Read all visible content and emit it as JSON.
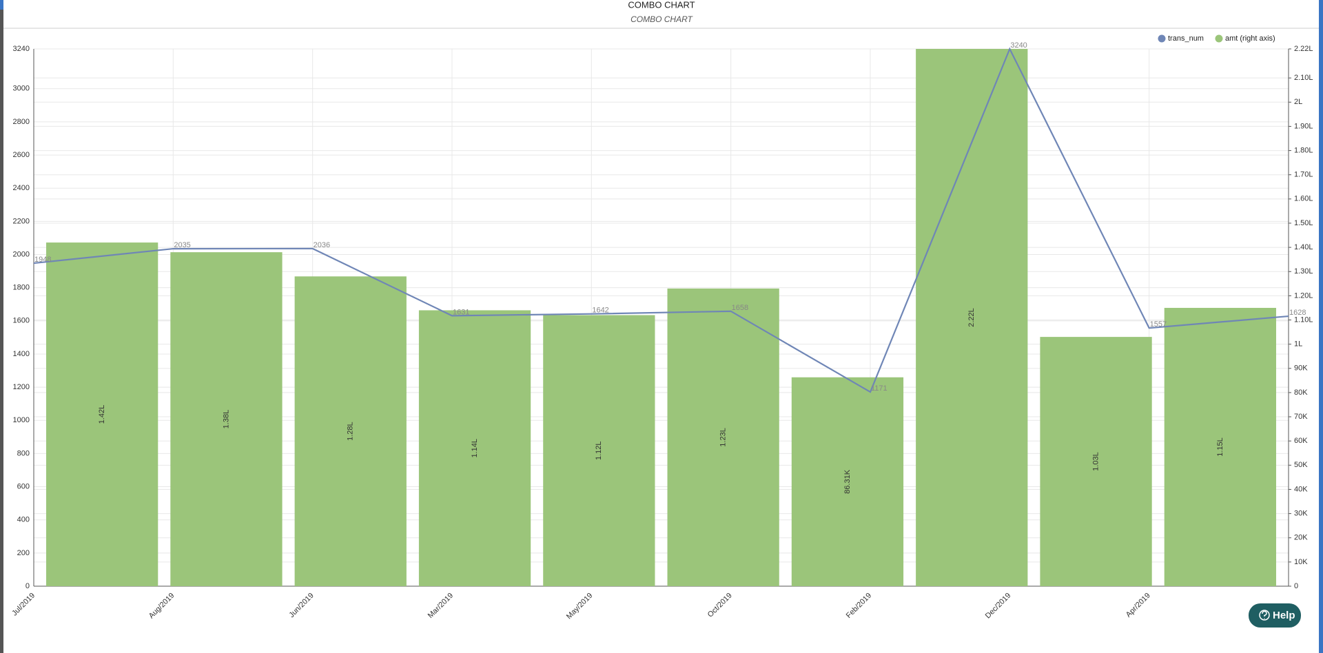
{
  "chart_data": {
    "type": "combo",
    "title": "COMBO CHART",
    "subtitle": "COMBO CHART",
    "categories": [
      "Jul/2019",
      "Aug/2019",
      "Jun/2019",
      "Mar/2019",
      "May/2019",
      "Oct/2019",
      "Feb/2019",
      "Dec/2019",
      "Apr/2019",
      null
    ],
    "series": [
      {
        "name": "trans_num",
        "type": "line",
        "color": "#6f86b6",
        "values": [
          1948,
          2035,
          2036,
          1631,
          1642,
          1658,
          1171,
          3240,
          1557,
          1628
        ]
      },
      {
        "name": "amt (right axis)",
        "type": "bar",
        "axis": "y2",
        "color": "#9bc57a",
        "values": [
          142000,
          138000,
          128000,
          114000,
          112000,
          123000,
          86310,
          222000,
          103000,
          115000
        ],
        "value_labels": [
          "1.42L",
          "1.38L",
          "1.28L",
          "1.14L",
          "1.12L",
          "1.23L",
          "86.31K",
          "2.22L",
          "1.03L",
          "1.15L"
        ]
      }
    ],
    "ylim": [
      0,
      3240
    ],
    "yticks": [
      0,
      200,
      400,
      600,
      800,
      1000,
      1200,
      1400,
      1600,
      1800,
      2000,
      2200,
      2400,
      2600,
      2800,
      3000,
      3240
    ],
    "y2lim": [
      0,
      222000
    ],
    "y2ticks": [
      0,
      {
        "value": 10000,
        "label": "10K"
      },
      {
        "value": 20000,
        "label": "20K"
      },
      {
        "value": 30000,
        "label": "30K"
      },
      {
        "value": 40000,
        "label": "40K"
      },
      {
        "value": 50000,
        "label": "50K"
      },
      {
        "value": 60000,
        "label": "60K"
      },
      {
        "value": 70000,
        "label": "70K"
      },
      {
        "value": 80000,
        "label": "80K"
      },
      {
        "value": 90000,
        "label": "90K"
      },
      {
        "value": 100000,
        "label": "1L"
      },
      {
        "value": 110000,
        "label": "1.10L"
      },
      {
        "value": 120000,
        "label": "1.20L"
      },
      {
        "value": 130000,
        "label": "1.30L"
      },
      {
        "value": 140000,
        "label": "1.40L"
      },
      {
        "value": 150000,
        "label": "1.50L"
      },
      {
        "value": 160000,
        "label": "1.60L"
      },
      {
        "value": 170000,
        "label": "1.70L"
      },
      {
        "value": 180000,
        "label": "1.80L"
      },
      {
        "value": 190000,
        "label": "1.90L"
      },
      {
        "value": 200000,
        "label": "2L"
      },
      {
        "value": 210000,
        "label": "2.10L"
      },
      {
        "value": 222000,
        "label": "2.22L"
      }
    ],
    "grid": true
  },
  "help_button": {
    "label": "Help"
  }
}
